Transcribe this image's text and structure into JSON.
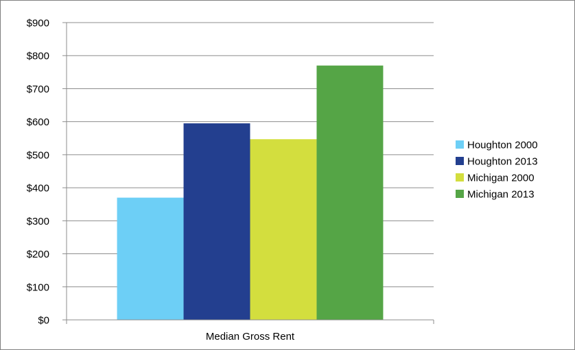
{
  "chart_data": {
    "type": "bar",
    "categories": [
      "Median Gross Rent"
    ],
    "series": [
      {
        "name": "Houghton 2000",
        "values": [
          370
        ],
        "color": "#6dcff6"
      },
      {
        "name": "Houghton 2013",
        "values": [
          595
        ],
        "color": "#233f8f"
      },
      {
        "name": "Michigan 2000",
        "values": [
          547
        ],
        "color": "#d3de3e"
      },
      {
        "name": "Michigan 2013",
        "values": [
          770
        ],
        "color": "#55a546"
      }
    ],
    "yticks": [
      "$0",
      "$100",
      "$200",
      "$300",
      "$400",
      "$500",
      "$600",
      "$700",
      "$800",
      "$900"
    ],
    "ylim": [
      0,
      900
    ],
    "title": "",
    "xlabel": "",
    "ylabel": "",
    "grid": true,
    "legend_position": "right"
  }
}
